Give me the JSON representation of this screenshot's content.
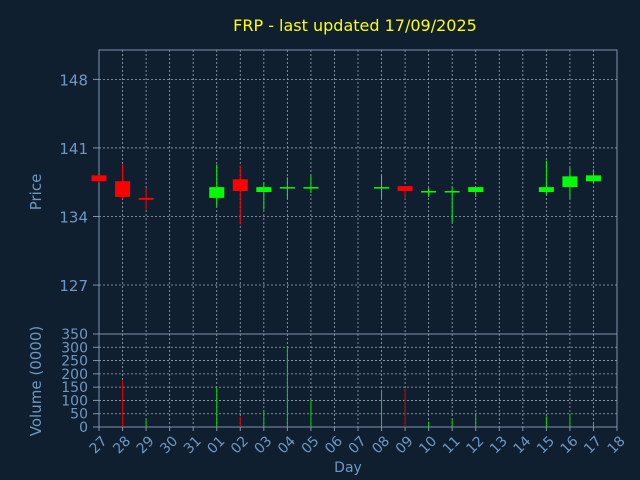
{
  "colors": {
    "background": "#0f1f30",
    "title": "#ffff00",
    "axis_text": "#6f97c3",
    "frame": "#7f93ad",
    "grid": "#9aa8b8",
    "up": "#00ff00",
    "down": "#ff0000",
    "up_vol": "#00dd00",
    "down_vol": "#dd0000"
  },
  "chart_data": {
    "type": "candlestick",
    "title": "FRP - last updated 17/09/2025",
    "xlabel": "Day",
    "ylabel_price": "Price",
    "ylabel_volume": "Volume (0000)",
    "x_ticks": [
      "27",
      "28",
      "29",
      "30",
      "31",
      "01",
      "02",
      "03",
      "04",
      "05",
      "06",
      "07",
      "08",
      "09",
      "10",
      "11",
      "12",
      "13",
      "14",
      "15",
      "16",
      "17",
      "18"
    ],
    "price_ticks": [
      127,
      134,
      141,
      148
    ],
    "price_ylim": [
      122,
      151
    ],
    "volume_ticks": [
      0,
      50,
      100,
      150,
      200,
      250,
      300,
      350
    ],
    "volume_tick_labels": [
      "0",
      "50",
      "100",
      "150",
      "200",
      "250",
      "300",
      "350"
    ],
    "volume_ylim": [
      0,
      350
    ],
    "grid": true,
    "candles": [
      {
        "day": "27",
        "open": 138.2,
        "high": 138.2,
        "low": 137.5,
        "close": 137.6
      },
      {
        "day": "28",
        "open": 137.6,
        "high": 139.3,
        "low": 135.8,
        "close": 136.0
      },
      {
        "day": "29",
        "open": 135.9,
        "high": 136.9,
        "low": 134.7,
        "close": 135.7
      },
      {
        "day": "01",
        "open": 135.9,
        "high": 139.3,
        "low": 135.0,
        "close": 137.0
      },
      {
        "day": "02",
        "open": 137.8,
        "high": 139.2,
        "low": 133.2,
        "close": 136.6
      },
      {
        "day": "03",
        "open": 136.5,
        "high": 137.5,
        "low": 134.7,
        "close": 137.0
      },
      {
        "day": "04",
        "open": 136.9,
        "high": 138.0,
        "low": 135.8,
        "close": 137.0
      },
      {
        "day": "05",
        "open": 136.9,
        "high": 138.2,
        "low": 136.4,
        "close": 137.0
      },
      {
        "day": "08",
        "open": 136.9,
        "high": 138.2,
        "low": 135.8,
        "close": 137.0
      },
      {
        "day": "09",
        "open": 137.1,
        "high": 137.1,
        "low": 135.8,
        "close": 136.6
      },
      {
        "day": "10",
        "open": 136.5,
        "high": 136.9,
        "low": 136.0,
        "close": 136.6
      },
      {
        "day": "11",
        "open": 136.5,
        "high": 137.0,
        "low": 133.4,
        "close": 136.6
      },
      {
        "day": "12",
        "open": 136.5,
        "high": 137.0,
        "low": 136.0,
        "close": 137.0
      },
      {
        "day": "15",
        "open": 136.5,
        "high": 139.7,
        "low": 136.2,
        "close": 137.0
      },
      {
        "day": "16",
        "open": 137.0,
        "high": 139.0,
        "low": 135.8,
        "close": 138.1
      },
      {
        "day": "17",
        "open": 137.6,
        "high": 138.8,
        "low": 137.4,
        "close": 138.2
      }
    ],
    "volumes": [
      {
        "day": "27",
        "value": 0,
        "direction": "down"
      },
      {
        "day": "28",
        "value": 175,
        "direction": "down"
      },
      {
        "day": "29",
        "value": 30,
        "direction": "up"
      },
      {
        "day": "01",
        "value": 150,
        "direction": "up"
      },
      {
        "day": "02",
        "value": 40,
        "direction": "down"
      },
      {
        "day": "03",
        "value": 65,
        "direction": "up"
      },
      {
        "day": "04",
        "value": 305,
        "direction": "up"
      },
      {
        "day": "05",
        "value": 100,
        "direction": "up"
      },
      {
        "day": "08",
        "value": 140,
        "direction": "up"
      },
      {
        "day": "09",
        "value": 145,
        "direction": "down"
      },
      {
        "day": "10",
        "value": 20,
        "direction": "up"
      },
      {
        "day": "11",
        "value": 30,
        "direction": "up"
      },
      {
        "day": "12",
        "value": 45,
        "direction": "up"
      },
      {
        "day": "15",
        "value": 40,
        "direction": "up"
      },
      {
        "day": "16",
        "value": 50,
        "direction": "up"
      },
      {
        "day": "17",
        "value": 15,
        "direction": "up"
      }
    ]
  }
}
